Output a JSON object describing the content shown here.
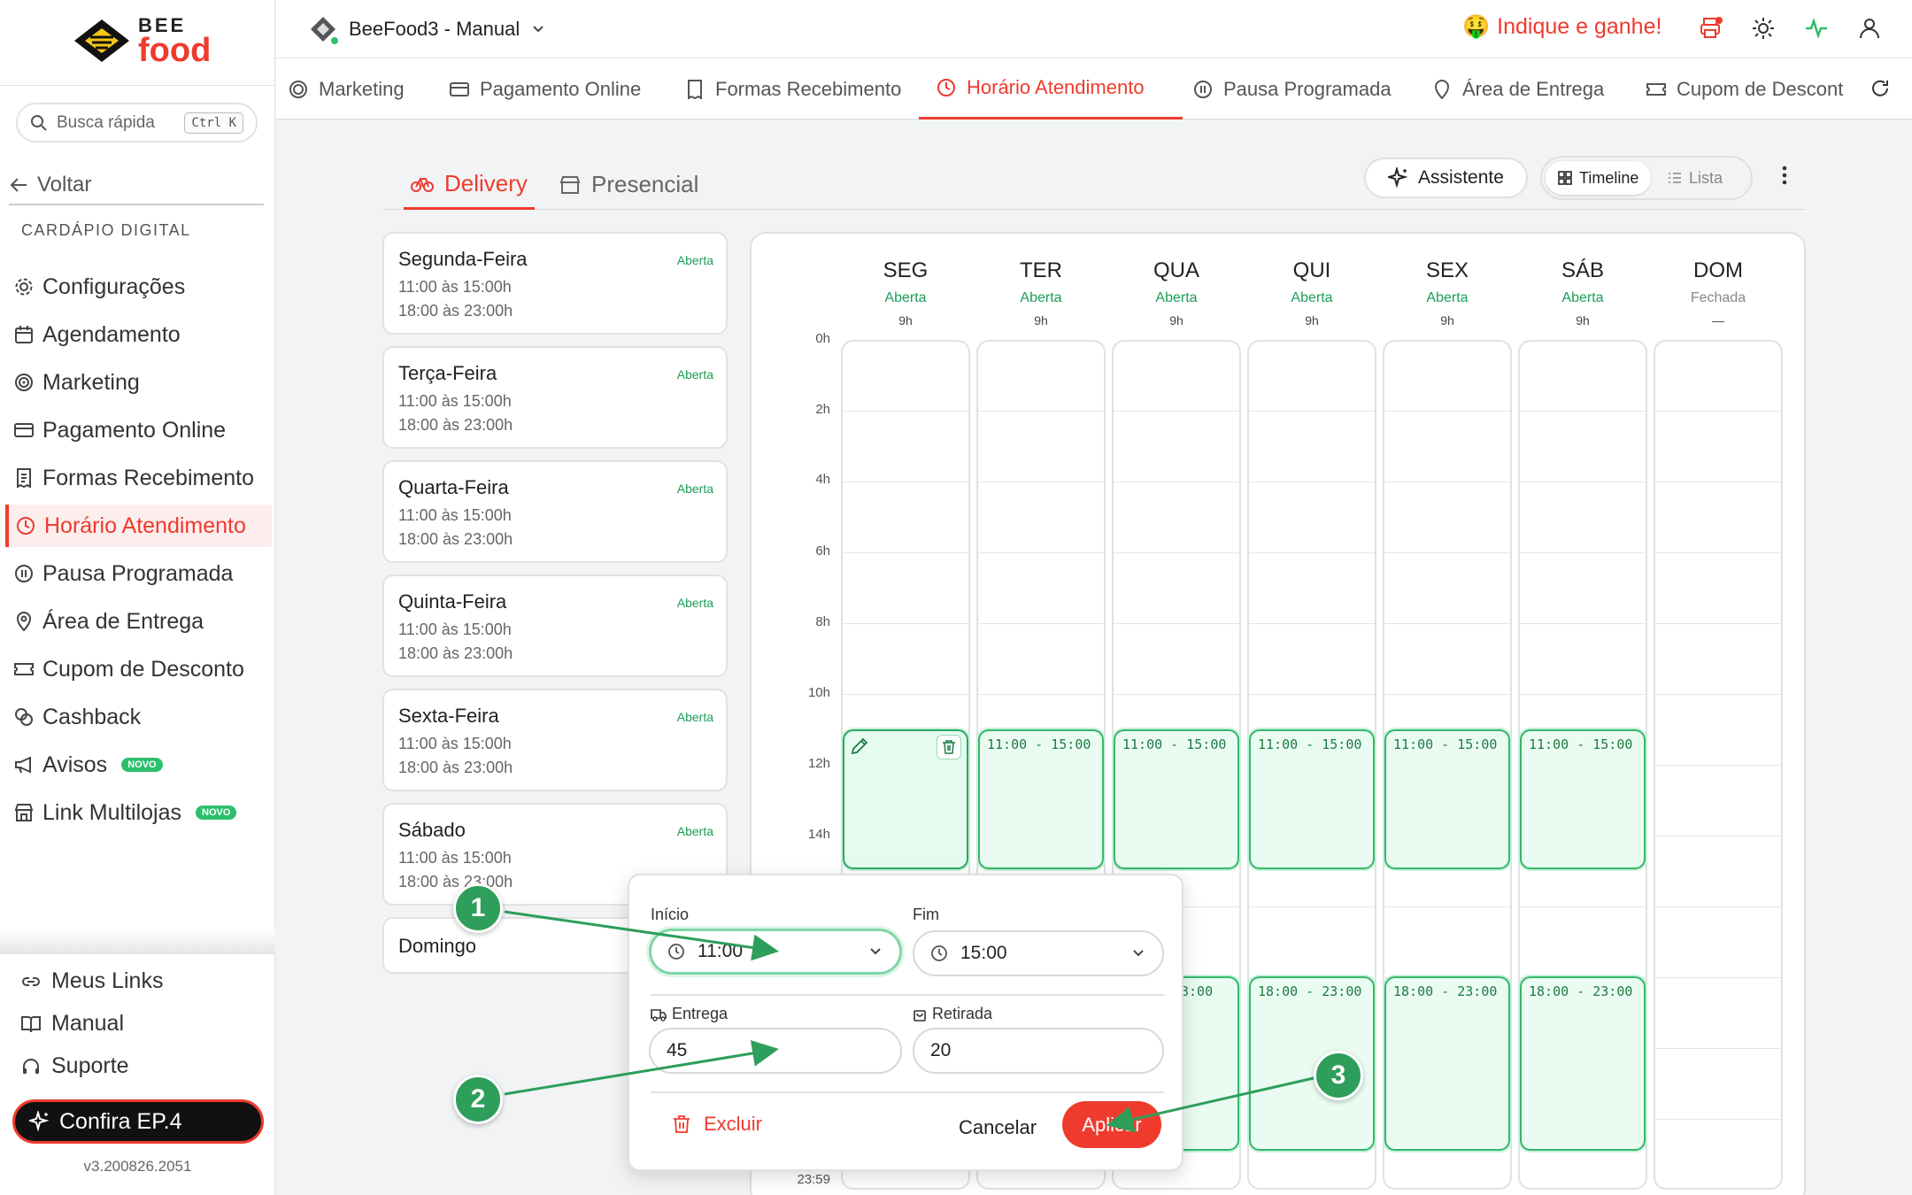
{
  "app": {
    "brand_top": "BEE",
    "brand_bottom": "food",
    "version": "v3.200826.2051"
  },
  "sidebar": {
    "search": {
      "placeholder": "Busca rápida",
      "shortcut": "Ctrl K"
    },
    "back_label": "Voltar",
    "section_title": "CARDÁPIO DIGITAL",
    "items": [
      {
        "label": "Configurações",
        "icon": "gear-icon"
      },
      {
        "label": "Agendamento",
        "icon": "calendar-icon"
      },
      {
        "label": "Marketing",
        "icon": "target-icon"
      },
      {
        "label": "Pagamento Online",
        "icon": "card-icon"
      },
      {
        "label": "Formas Recebimento",
        "icon": "receipt-icon"
      },
      {
        "label": "Horário Atendimento",
        "icon": "clock-icon",
        "active": true
      },
      {
        "label": "Pausa Programada",
        "icon": "pause-icon"
      },
      {
        "label": "Área de Entrega",
        "icon": "pin-icon"
      },
      {
        "label": "Cupom de Desconto",
        "icon": "ticket-icon"
      },
      {
        "label": "Cashback",
        "icon": "coins-icon"
      },
      {
        "label": "Avisos",
        "icon": "megaphone-icon",
        "badge": "NOVO"
      },
      {
        "label": "Link Multilojas",
        "icon": "store-icon",
        "badge": "NOVO"
      }
    ],
    "bottom_links": [
      {
        "label": "Meus Links",
        "icon": "link-icon"
      },
      {
        "label": "Manual",
        "icon": "book-icon"
      },
      {
        "label": "Suporte",
        "icon": "headset-icon"
      }
    ],
    "promo_button": "Confira EP.4"
  },
  "topbar": {
    "store_name": "BeeFood3 - Manual",
    "referral": "Indique e ganhe!",
    "referral_emoji": "🤑"
  },
  "top_tabs": [
    {
      "label": "Marketing",
      "icon": "target-icon"
    },
    {
      "label": "Pagamento Online",
      "icon": "card-icon"
    },
    {
      "label": "Formas Recebimento",
      "icon": "receipt-icon"
    },
    {
      "label": "Horário Atendimento",
      "icon": "clock-icon",
      "active": true
    },
    {
      "label": "Pausa Programada",
      "icon": "pause-icon"
    },
    {
      "label": "Área de Entrega",
      "icon": "pin-icon"
    },
    {
      "label": "Cupom de Descont",
      "icon": "ticket-icon"
    }
  ],
  "subtabs": {
    "delivery": "Delivery",
    "presencial": "Presencial"
  },
  "toolbar": {
    "assistant": "Assistente",
    "timeline": "Timeline",
    "list": "Lista"
  },
  "days_list": [
    {
      "name": "Segunda-Feira",
      "status": "Aberta",
      "slot1": "11:00 às 15:00h",
      "slot2": "18:00 às 23:00h"
    },
    {
      "name": "Terça-Feira",
      "status": "Aberta",
      "slot1": "11:00 às 15:00h",
      "slot2": "18:00 às 23:00h"
    },
    {
      "name": "Quarta-Feira",
      "status": "Aberta",
      "slot1": "11:00 às 15:00h",
      "slot2": "18:00 às 23:00h"
    },
    {
      "name": "Quinta-Feira",
      "status": "Aberta",
      "slot1": "11:00 às 15:00h",
      "slot2": "18:00 às 23:00h"
    },
    {
      "name": "Sexta-Feira",
      "status": "Aberta",
      "slot1": "11:00 às 15:00h",
      "slot2": "18:00 às 23:00h"
    },
    {
      "name": "Sábado",
      "status": "Aberta",
      "slot1": "11:00 às 15:00h",
      "slot2": "18:00 às 23:00h"
    },
    {
      "name": "Domingo"
    }
  ],
  "timeline": {
    "hour_labels": [
      "0h",
      "2h",
      "4h",
      "6h",
      "8h",
      "10h",
      "12h",
      "14h"
    ],
    "end_label": "23:59",
    "days": [
      {
        "code": "SEG",
        "status": "Aberta",
        "hours": "9h"
      },
      {
        "code": "TER",
        "status": "Aberta",
        "hours": "9h"
      },
      {
        "code": "QUA",
        "status": "Aberta",
        "hours": "9h"
      },
      {
        "code": "QUI",
        "status": "Aberta",
        "hours": "9h"
      },
      {
        "code": "SEX",
        "status": "Aberta",
        "hours": "9h"
      },
      {
        "code": "SÁB",
        "status": "Aberta",
        "hours": "9h"
      },
      {
        "code": "DOM",
        "status": "Fechada",
        "hours": "—"
      }
    ],
    "block_morning": "11:00 - 15:00",
    "block_evening": "18:00 - 23:00",
    "block_evening_partial": "3:00"
  },
  "editor": {
    "start_label": "Início",
    "start_value": "11:00",
    "end_label": "Fim",
    "end_value": "15:00",
    "delivery_label": "Entrega",
    "delivery_value": "45",
    "pickup_label": "Retirada",
    "pickup_value": "20",
    "delete": "Excluir",
    "cancel": "Cancelar",
    "apply": "Aplicar"
  },
  "annotations": [
    "1",
    "2",
    "3"
  ],
  "colors": {
    "accent": "#ee3b2e",
    "open": "#1a9d57",
    "block_fill": "#eafcf1",
    "marker": "#2e9e5b"
  }
}
